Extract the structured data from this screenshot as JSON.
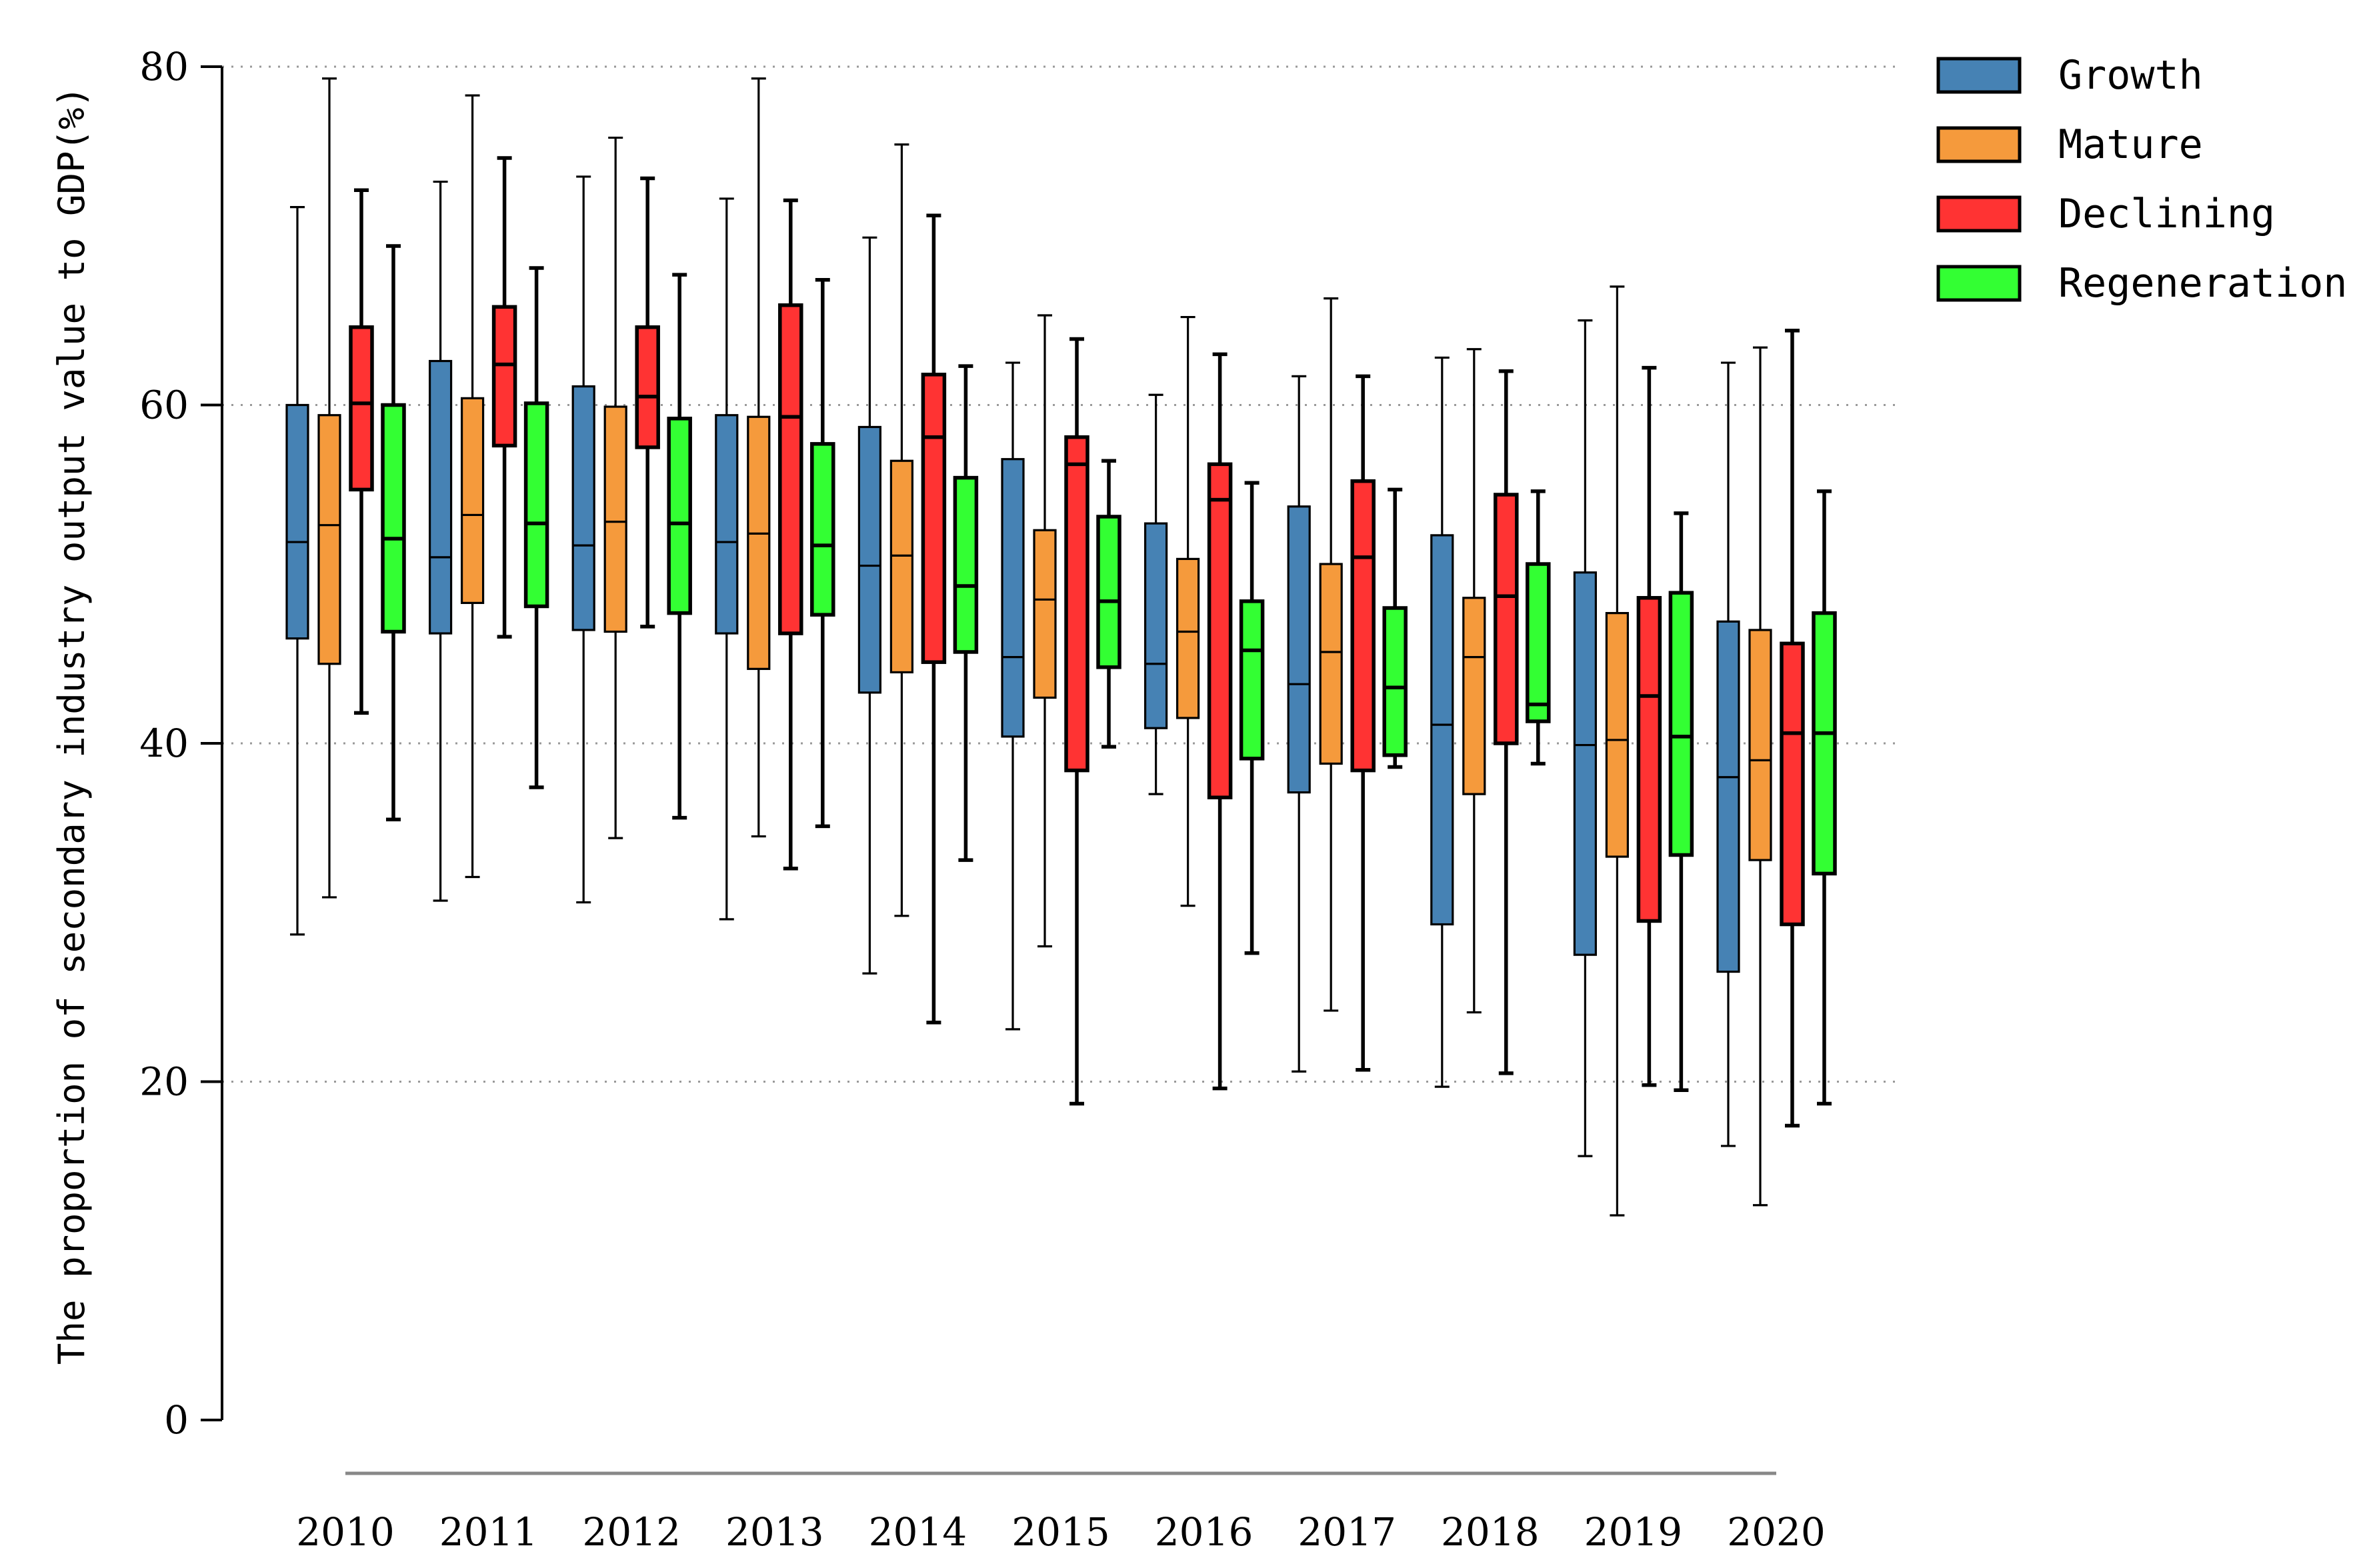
{
  "chart_data": {
    "type": "box",
    "title": "",
    "xlabel": "",
    "ylabel": "The proportion of secondary industry output value to GDP(%)",
    "ylim": [
      0,
      80
    ],
    "yticks": [
      0,
      20,
      40,
      60,
      80
    ],
    "ytick_labels": [
      "0",
      "20",
      "40",
      "60",
      "80"
    ],
    "grid": "horizontal dotted at 20, 40, 60, 80",
    "legend_position": "top-right",
    "categories": [
      "2010",
      "2011",
      "2012",
      "2013",
      "2014",
      "2015",
      "2016",
      "2017",
      "2018",
      "2019",
      "2020"
    ],
    "series": [
      {
        "name": "Growth",
        "color": "#4682B4",
        "stats": [
          {
            "min": 28.7,
            "q1": 46.2,
            "median": 51.9,
            "q3": 60.0,
            "max": 71.7
          },
          {
            "min": 30.7,
            "q1": 46.5,
            "median": 51.0,
            "q3": 62.6,
            "max": 73.2
          },
          {
            "min": 30.6,
            "q1": 46.7,
            "median": 51.7,
            "q3": 61.1,
            "max": 73.5
          },
          {
            "min": 29.6,
            "q1": 46.5,
            "median": 51.9,
            "q3": 59.4,
            "max": 72.2
          },
          {
            "min": 26.4,
            "q1": 43.0,
            "median": 50.5,
            "q3": 58.7,
            "max": 69.9
          },
          {
            "min": 23.1,
            "q1": 40.4,
            "median": 45.1,
            "q3": 56.8,
            "max": 62.5
          },
          {
            "min": 37.0,
            "q1": 40.9,
            "median": 44.7,
            "q3": 53.0,
            "max": 60.6
          },
          {
            "min": 20.6,
            "q1": 37.1,
            "median": 43.5,
            "q3": 54.0,
            "max": 61.7
          },
          {
            "min": 19.7,
            "q1": 29.3,
            "median": 41.1,
            "q3": 52.3,
            "max": 62.8
          },
          {
            "min": 15.6,
            "q1": 27.5,
            "median": 39.9,
            "q3": 50.1,
            "max": 65.0
          },
          {
            "min": 16.2,
            "q1": 26.5,
            "median": 38.0,
            "q3": 47.2,
            "max": 62.5
          }
        ]
      },
      {
        "name": "Mature",
        "color": "#F59A3C",
        "stats": [
          {
            "min": 30.9,
            "q1": 44.7,
            "median": 52.9,
            "q3": 59.4,
            "max": 79.3
          },
          {
            "min": 32.1,
            "q1": 48.3,
            "median": 53.5,
            "q3": 60.4,
            "max": 78.3
          },
          {
            "min": 34.4,
            "q1": 46.6,
            "median": 53.1,
            "q3": 59.9,
            "max": 75.8
          },
          {
            "min": 34.5,
            "q1": 44.4,
            "median": 52.4,
            "q3": 59.3,
            "max": 79.3
          },
          {
            "min": 29.8,
            "q1": 44.2,
            "median": 51.1,
            "q3": 56.7,
            "max": 75.4
          },
          {
            "min": 28.0,
            "q1": 42.7,
            "median": 48.5,
            "q3": 52.6,
            "max": 65.3
          },
          {
            "min": 30.4,
            "q1": 41.5,
            "median": 46.6,
            "q3": 50.9,
            "max": 65.2
          },
          {
            "min": 24.2,
            "q1": 38.8,
            "median": 45.4,
            "q3": 50.6,
            "max": 66.3
          },
          {
            "min": 24.1,
            "q1": 37.0,
            "median": 45.1,
            "q3": 48.6,
            "max": 63.3
          },
          {
            "min": 12.1,
            "q1": 33.3,
            "median": 40.2,
            "q3": 47.7,
            "max": 67.0
          },
          {
            "min": 12.7,
            "q1": 33.1,
            "median": 39.0,
            "q3": 46.7,
            "max": 63.4
          }
        ]
      },
      {
        "name": "Declining",
        "color": "#FF3333",
        "stats": [
          {
            "min": 41.8,
            "q1": 55.0,
            "median": 60.1,
            "q3": 64.6,
            "max": 72.7
          },
          {
            "min": 46.3,
            "q1": 57.6,
            "median": 62.4,
            "q3": 65.8,
            "max": 74.6
          },
          {
            "min": 46.9,
            "q1": 57.5,
            "median": 60.5,
            "q3": 64.6,
            "max": 73.4
          },
          {
            "min": 32.6,
            "q1": 46.5,
            "median": 59.3,
            "q3": 65.9,
            "max": 72.1
          },
          {
            "min": 23.5,
            "q1": 44.8,
            "median": 58.1,
            "q3": 61.8,
            "max": 71.2
          },
          {
            "min": 18.7,
            "q1": 38.4,
            "median": 56.5,
            "q3": 58.1,
            "max": 63.9
          },
          {
            "min": 19.6,
            "q1": 36.8,
            "median": 54.4,
            "q3": 56.5,
            "max": 63.0
          },
          {
            "min": 20.7,
            "q1": 38.4,
            "median": 51.0,
            "q3": 55.5,
            "max": 61.7
          },
          {
            "min": 20.5,
            "q1": 40.0,
            "median": 48.7,
            "q3": 54.7,
            "max": 62.0
          },
          {
            "min": 19.8,
            "q1": 29.5,
            "median": 42.8,
            "q3": 48.6,
            "max": 62.2
          },
          {
            "min": 17.4,
            "q1": 29.3,
            "median": 40.6,
            "q3": 45.9,
            "max": 64.4
          }
        ]
      },
      {
        "name": "Regeneration",
        "color": "#33FF33",
        "stats": [
          {
            "min": 35.5,
            "q1": 46.6,
            "median": 52.1,
            "q3": 60.0,
            "max": 69.4
          },
          {
            "min": 37.4,
            "q1": 48.1,
            "median": 53.0,
            "q3": 60.1,
            "max": 68.1
          },
          {
            "min": 35.6,
            "q1": 47.7,
            "median": 53.0,
            "q3": 59.2,
            "max": 67.7
          },
          {
            "min": 35.1,
            "q1": 47.6,
            "median": 51.7,
            "q3": 57.7,
            "max": 67.4
          },
          {
            "min": 33.1,
            "q1": 45.4,
            "median": 49.3,
            "q3": 55.7,
            "max": 62.3
          },
          {
            "min": 39.8,
            "q1": 44.5,
            "median": 48.4,
            "q3": 53.4,
            "max": 56.7
          },
          {
            "min": 27.6,
            "q1": 39.1,
            "median": 45.5,
            "q3": 48.4,
            "max": 55.4
          },
          {
            "min": 38.6,
            "q1": 39.3,
            "median": 43.3,
            "q3": 48.0,
            "max": 55.0
          },
          {
            "min": 38.8,
            "q1": 41.3,
            "median": 42.3,
            "q3": 50.6,
            "max": 54.9
          },
          {
            "min": 19.5,
            "q1": 33.4,
            "median": 40.4,
            "q3": 48.9,
            "max": 53.6
          },
          {
            "min": 18.7,
            "q1": 32.3,
            "median": 40.6,
            "q3": 47.7,
            "max": 54.9
          }
        ]
      }
    ]
  }
}
